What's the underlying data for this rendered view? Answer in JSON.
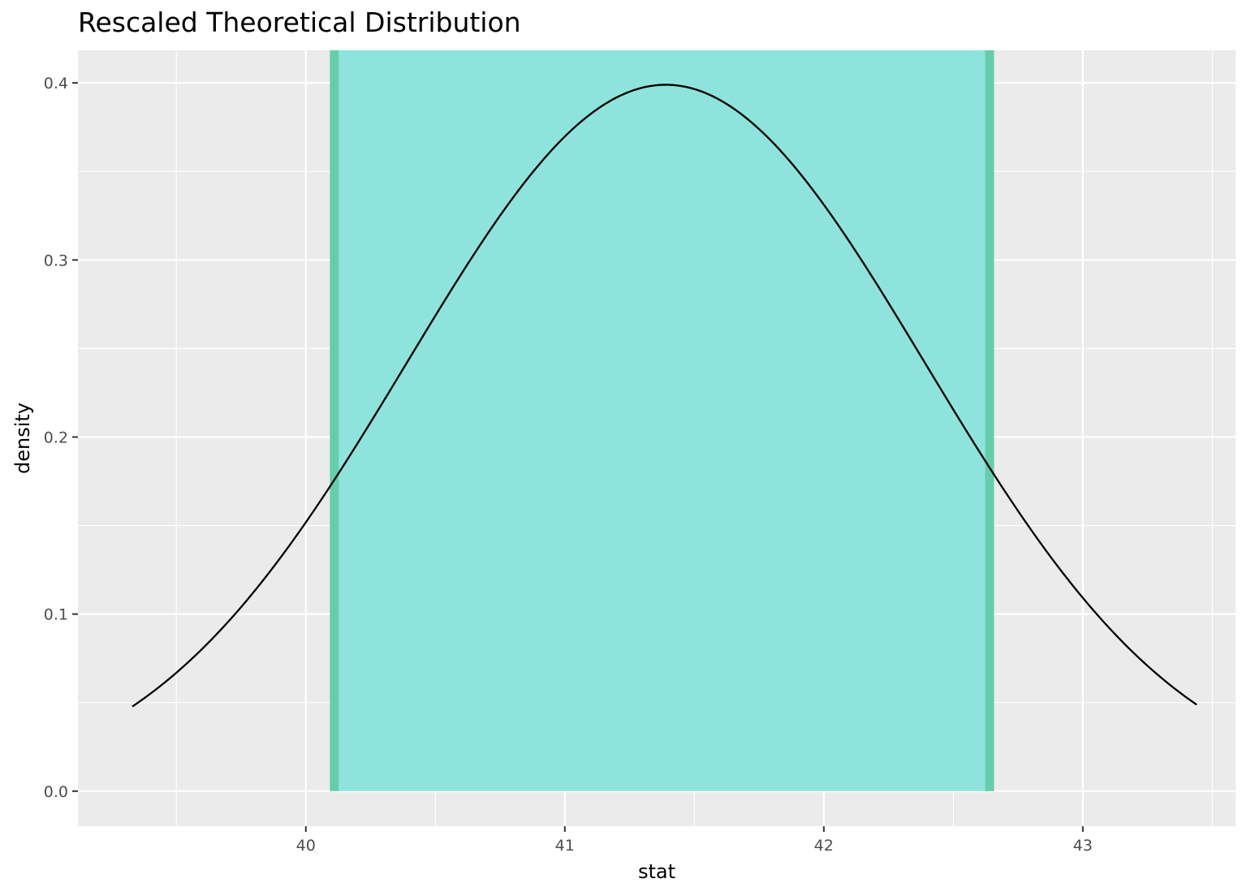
{
  "chart_data": {
    "type": "area",
    "title": "Rescaled Theoretical Distribution",
    "xlabel": "stat",
    "ylabel": "density",
    "xlim": [
      39.12,
      43.59
    ],
    "ylim": [
      -0.0198,
      0.4184
    ],
    "x_ticks": [
      40,
      41,
      42,
      43
    ],
    "x_tick_labels": [
      "40",
      "41",
      "42",
      "43"
    ],
    "y_ticks": [
      0.0,
      0.1,
      0.2,
      0.3,
      0.4
    ],
    "y_tick_labels": [
      "0.0",
      "0.1",
      "0.2",
      "0.3",
      "0.4"
    ],
    "grid": true,
    "distribution": {
      "shape": "normal",
      "mean": 41.39,
      "sd": 1.0,
      "x_from": 39.33,
      "x_to": 43.44
    },
    "shaded_interval": {
      "lower": 40.11,
      "upper": 42.64
    },
    "colors": {
      "panel": "#EBEBEB",
      "grid": "#FFFFFF",
      "curve": "#000000",
      "shade_fill": "#87E3DA",
      "shade_edge": "#66CDAA",
      "curve_inside": "#1E837A"
    }
  }
}
